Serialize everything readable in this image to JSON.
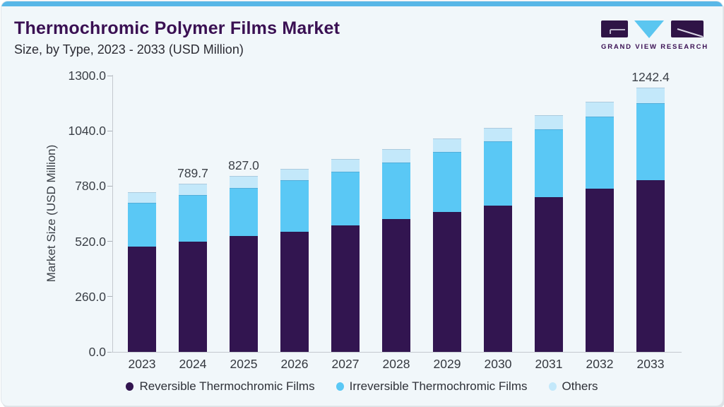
{
  "header": {
    "title": "Thermochromic Polymer Films Market",
    "subtitle": "Size, by Type, 2023 - 2033 (USD Million)",
    "brand": "GRAND VIEW RESEARCH"
  },
  "brand_colors": {
    "mark_purple": "#2f1446",
    "mark_blue": "#5bc6f0",
    "glyph_line": "#b9b3c9"
  },
  "chart_data": {
    "type": "bar",
    "stacked": true,
    "title": "Thermochromic Polymer Films Market Size, by Type, 2023 - 2033 (USD Million)",
    "xlabel": "",
    "ylabel": "Market Size (USD Million)",
    "ylim": [
      0,
      1300
    ],
    "yticks": [
      0,
      260,
      520,
      780,
      1040,
      1300
    ],
    "grid": false,
    "legend_position": "bottom",
    "categories": [
      "2023",
      "2024",
      "2025",
      "2026",
      "2027",
      "2028",
      "2029",
      "2030",
      "2031",
      "2032",
      "2033"
    ],
    "series": [
      {
        "name": "Reversible Thermochromic Films",
        "color": "#321550",
        "values": [
          494.3,
          519.8,
          543.9,
          566.2,
          596.1,
          626.1,
          657.3,
          689.2,
          729.2,
          768.0,
          808.9
        ]
      },
      {
        "name": "Irreversible Thermochromic Films",
        "color": "#5ac8f5",
        "values": [
          206.0,
          217.4,
          227.6,
          240.5,
          250.6,
          264.9,
          282.6,
          301.6,
          318.1,
          338.2,
          360.4
        ]
      },
      {
        "name": "Others",
        "color": "#c3e8fa",
        "values": [
          50.0,
          52.5,
          55.5,
          55.6,
          60.0,
          62.2,
          63.2,
          63.2,
          66.5,
          69.8,
          73.1
        ]
      }
    ],
    "total_labels": [
      "",
      "789.7",
      "827.0",
      "",
      "",
      "",
      "",
      "",
      "",
      "",
      "1242.4"
    ],
    "accent_colors": {
      "card_background": "#f1f7fa",
      "top_strip": "#58b7e7",
      "axis": "#c4c9cf",
      "text": "#3b4047",
      "title_purple": "#3a1053"
    }
  }
}
